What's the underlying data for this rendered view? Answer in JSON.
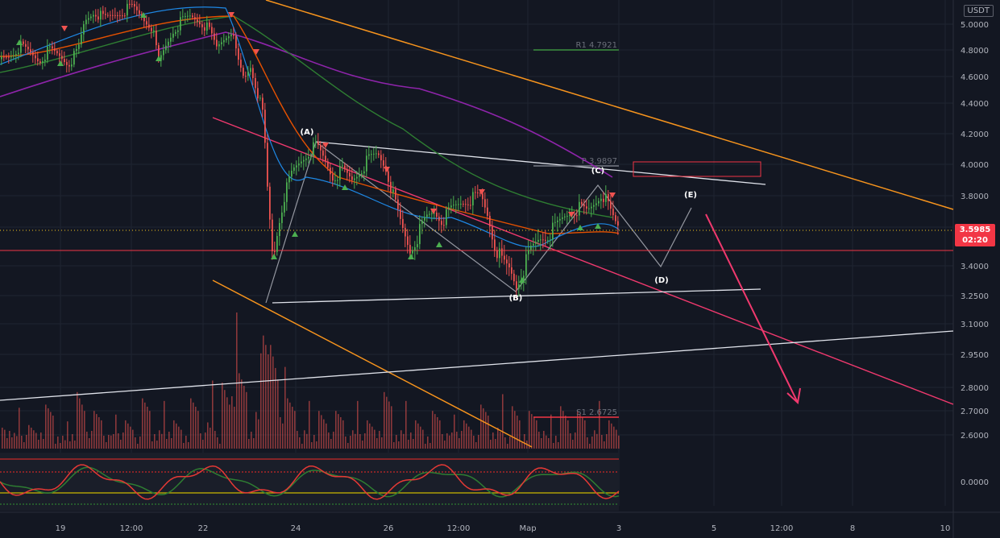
{
  "currency": "USDT",
  "last_price": "3.5985",
  "countdown": "02:20",
  "colors": {
    "background": "#131722",
    "grid": "#1f2431",
    "axis_text": "#b2b5be",
    "up": "#26a69a",
    "down": "#ef5350",
    "orange_channel": "#f7941d",
    "pink_channel": "#f0396e",
    "white_line": "#e0e3eb",
    "price_line": "#f23645"
  },
  "chart_data": {
    "type": "candlestick",
    "y_ticks": [
      "5.0000",
      "4.8000",
      "4.6000",
      "4.4000",
      "4.2000",
      "4.0000",
      "3.8000",
      "3.6000",
      "3.4000",
      "3.2500",
      "3.1000",
      "2.9500",
      "2.8000",
      "2.7000",
      "2.6000"
    ],
    "oscillator_ticks": [
      "0.0000"
    ],
    "x_ticks": [
      "19",
      "12:00",
      "22",
      "24",
      "26",
      "12:00",
      "Мар",
      "3",
      "5",
      "12:00",
      "8",
      "10"
    ],
    "ylim": [
      2.55,
      5.1
    ],
    "levels": [
      {
        "label": "R1 4.7921",
        "value": 4.7921,
        "color": "#3d9140"
      },
      {
        "label": "P 3.9897",
        "value": 3.9897,
        "color": "#787b86"
      },
      {
        "label": "S1 2.6725",
        "value": 2.6725,
        "color": "#f23645"
      }
    ],
    "wave_labels": [
      "(A)",
      "(B)",
      "(C)",
      "(D)",
      "(E)"
    ],
    "price_series": [
      [
        0,
        4.73
      ],
      [
        12,
        4.76
      ],
      [
        24,
        4.83
      ],
      [
        36,
        4.78
      ],
      [
        48,
        4.72
      ],
      [
        60,
        4.8
      ],
      [
        72,
        4.76
      ],
      [
        84,
        4.7
      ],
      [
        96,
        4.79
      ],
      [
        104,
        5.02
      ],
      [
        116,
        5.1
      ],
      [
        128,
        5.04
      ],
      [
        140,
        5.07
      ],
      [
        152,
        5.1
      ],
      [
        164,
        5.13
      ],
      [
        176,
        5.05
      ],
      [
        188,
        4.98
      ],
      [
        196,
        4.7
      ],
      [
        204,
        4.82
      ],
      [
        214,
        4.95
      ],
      [
        224,
        5.02
      ],
      [
        236,
        5.06
      ],
      [
        248,
        5.02
      ],
      [
        258,
        4.96
      ],
      [
        268,
        4.82
      ],
      [
        278,
        4.9
      ],
      [
        286,
        4.96
      ],
      [
        294,
        4.72
      ],
      [
        302,
        4.58
      ],
      [
        310,
        4.68
      ],
      [
        318,
        4.5
      ],
      [
        326,
        4.3
      ],
      [
        332,
        3.75
      ],
      [
        338,
        3.42
      ],
      [
        344,
        3.6
      ],
      [
        352,
        3.8
      ],
      [
        362,
        3.95
      ],
      [
        372,
        4.02
      ],
      [
        382,
        4.08
      ],
      [
        392,
        4.12
      ],
      [
        402,
        4.03
      ],
      [
        412,
        3.92
      ],
      [
        424,
        3.96
      ],
      [
        436,
        3.9
      ],
      [
        446,
        3.96
      ],
      [
        456,
        4.03
      ],
      [
        468,
        4.07
      ],
      [
        478,
        3.98
      ],
      [
        488,
        3.78
      ],
      [
        498,
        3.6
      ],
      [
        508,
        3.48
      ],
      [
        518,
        3.56
      ],
      [
        528,
        3.66
      ],
      [
        538,
        3.7
      ],
      [
        548,
        3.64
      ],
      [
        560,
        3.72
      ],
      [
        572,
        3.76
      ],
      [
        584,
        3.78
      ],
      [
        596,
        3.8
      ],
      [
        604,
        3.68
      ],
      [
        612,
        3.52
      ],
      [
        622,
        3.42
      ],
      [
        632,
        3.38
      ],
      [
        640,
        3.3
      ],
      [
        648,
        3.38
      ],
      [
        658,
        3.48
      ],
      [
        668,
        3.54
      ],
      [
        678,
        3.56
      ],
      [
        688,
        3.6
      ],
      [
        698,
        3.66
      ],
      [
        708,
        3.7
      ],
      [
        718,
        3.72
      ],
      [
        728,
        3.7
      ],
      [
        738,
        3.76
      ],
      [
        746,
        3.82
      ],
      [
        752,
        3.76
      ],
      [
        758,
        3.68
      ],
      [
        764,
        3.62
      ],
      [
        768,
        3.6
      ]
    ],
    "volume_series": [
      [
        0,
        0.2
      ],
      [
        20,
        0.3
      ],
      [
        40,
        0.25
      ],
      [
        60,
        0.35
      ],
      [
        80,
        0.2
      ],
      [
        100,
        0.6
      ],
      [
        120,
        0.3
      ],
      [
        140,
        0.25
      ],
      [
        160,
        0.3
      ],
      [
        180,
        0.4
      ],
      [
        200,
        0.35
      ],
      [
        220,
        0.3
      ],
      [
        240,
        0.4
      ],
      [
        260,
        0.5
      ],
      [
        280,
        0.7
      ],
      [
        290,
        1.0
      ],
      [
        300,
        0.6
      ],
      [
        320,
        0.7
      ],
      [
        330,
        0.9
      ],
      [
        340,
        1.1
      ],
      [
        350,
        0.6
      ],
      [
        360,
        0.4
      ],
      [
        380,
        0.35
      ],
      [
        400,
        0.4
      ],
      [
        420,
        0.3
      ],
      [
        440,
        0.35
      ],
      [
        460,
        0.3
      ],
      [
        480,
        0.45
      ],
      [
        500,
        0.35
      ],
      [
        520,
        0.3
      ],
      [
        540,
        0.3
      ],
      [
        560,
        0.25
      ],
      [
        580,
        0.3
      ],
      [
        600,
        0.35
      ],
      [
        620,
        0.4
      ],
      [
        640,
        0.45
      ],
      [
        660,
        0.3
      ],
      [
        680,
        0.25
      ],
      [
        700,
        0.45
      ],
      [
        720,
        0.3
      ],
      [
        740,
        0.35
      ],
      [
        760,
        0.3
      ],
      [
        768,
        0.25
      ]
    ]
  }
}
